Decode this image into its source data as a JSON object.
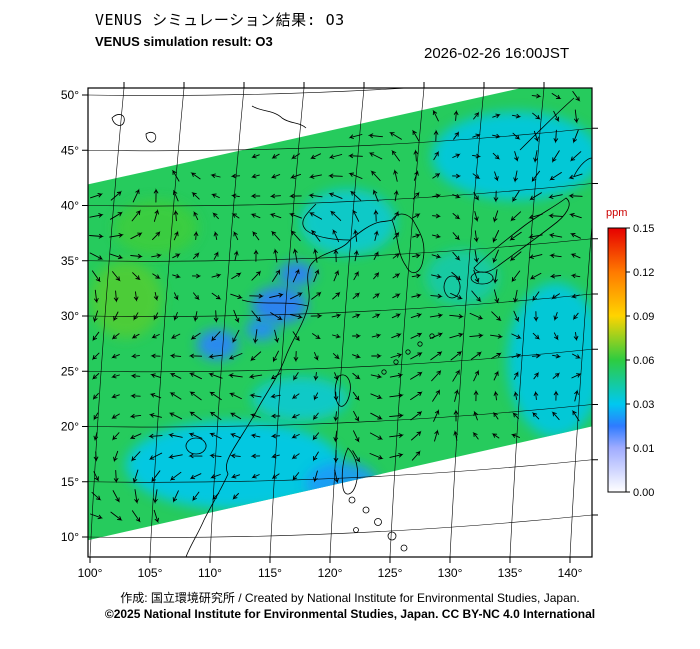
{
  "header": {
    "title_jp": "VENUS シミュレーション結果: O3",
    "title_en": "VENUS simulation result: O3",
    "timestamp": "2026-02-26 16:00JST"
  },
  "footer": {
    "line1": "作成: 国立環境研究所 / Created by National Institute for Environmental Studies, Japan.",
    "line2": "©2025 National Institute for Environmental Studies, Japan. CC BY-NC 4.0 International"
  },
  "chart_data": {
    "type": "heatmap",
    "title": "VENUS simulation result: O3",
    "variable": "O3",
    "unit": "ppm",
    "timestamp": "2026-02-26 16:00JST",
    "x_axis": {
      "label": "longitude",
      "ticks": [
        "100°",
        "105°",
        "110°",
        "115°",
        "120°",
        "125°",
        "130°",
        "135°",
        "140°"
      ],
      "values": [
        100,
        105,
        110,
        115,
        120,
        125,
        130,
        135,
        140
      ]
    },
    "y_axis": {
      "label": "latitude",
      "ticks": [
        "50°",
        "45°",
        "40°",
        "35°",
        "30°",
        "25°",
        "20°",
        "15°",
        "10°"
      ],
      "values": [
        50,
        45,
        40,
        35,
        30,
        25,
        20,
        15,
        10
      ]
    },
    "colorbar": {
      "label": "ppm",
      "label_color": "#cc0000",
      "tick_values": [
        0.15,
        0.12,
        0.09,
        0.06,
        0.03,
        0.01,
        0.0
      ],
      "scale_stops": [
        {
          "value": 0.0,
          "color": "#ffffff"
        },
        {
          "value": 0.01,
          "color": "#a0acff"
        },
        {
          "value": 0.02,
          "color": "#2e7bff"
        },
        {
          "value": 0.03,
          "color": "#00c8f0"
        },
        {
          "value": 0.06,
          "color": "#2ecc40"
        },
        {
          "value": 0.09,
          "color": "#ffd400"
        },
        {
          "value": 0.12,
          "color": "#ff7a00"
        },
        {
          "value": 0.15,
          "color": "#e60000"
        }
      ]
    },
    "domain_swath": {
      "description": "Tilted model-domain band; O3 mostly 0.03-0.06 ppm (green/cyan) with low-O3 blue patches; outside the band the map is blank white",
      "base_value_ppm": 0.055,
      "polygon_lonlat": [
        [
          99.8,
          41.9
        ],
        [
          135.8,
          50.6
        ],
        [
          141.8,
          50.6
        ],
        [
          141.8,
          20.0
        ],
        [
          99.8,
          9.7
        ]
      ]
    },
    "patches": [
      {
        "lon": 112.0,
        "lat": 16.5,
        "rx_deg": 9.0,
        "ry_deg": 4.0,
        "value_ppm": 0.03
      },
      {
        "lon": 135.5,
        "lat": 44.5,
        "rx_deg": 7.0,
        "ry_deg": 4.0,
        "value_ppm": 0.032
      },
      {
        "lon": 138.8,
        "lat": 26.0,
        "rx_deg": 4.0,
        "ry_deg": 7.0,
        "value_ppm": 0.032
      },
      {
        "lon": 103.0,
        "lat": 31.5,
        "rx_deg": 3.0,
        "ry_deg": 3.5,
        "value_ppm": 0.065
      },
      {
        "lon": 105.5,
        "lat": 38.0,
        "rx_deg": 3.5,
        "ry_deg": 2.5,
        "value_ppm": 0.062
      },
      {
        "lon": 121.5,
        "lat": 38.5,
        "rx_deg": 4.0,
        "ry_deg": 3.0,
        "value_ppm": 0.035
      },
      {
        "lon": 117.5,
        "lat": 22.5,
        "rx_deg": 4.0,
        "ry_deg": 2.0,
        "value_ppm": 0.035
      },
      {
        "lon": 131.0,
        "lat": 33.5,
        "rx_deg": 3.0,
        "ry_deg": 2.5,
        "value_ppm": 0.042
      },
      {
        "lon": 121.0,
        "lat": 14.8,
        "rx_deg": 3.0,
        "ry_deg": 2.0,
        "value_ppm": 0.024
      },
      {
        "lon": 115.8,
        "lat": 31.0,
        "rx_deg": 2.3,
        "ry_deg": 1.7,
        "value_ppm": 0.02
      },
      {
        "lon": 110.6,
        "lat": 27.4,
        "rx_deg": 1.7,
        "ry_deg": 1.4,
        "value_ppm": 0.021
      },
      {
        "lon": 117.2,
        "lat": 33.8,
        "rx_deg": 1.5,
        "ry_deg": 1.1,
        "value_ppm": 0.02
      },
      {
        "lon": 114.3,
        "lat": 28.8,
        "rx_deg": 1.3,
        "ry_deg": 1.0,
        "value_ppm": 0.022
      }
    ],
    "wind_vectors": {
      "shown": true,
      "description": "small black wind-direction arrows drawn across the model domain"
    }
  }
}
